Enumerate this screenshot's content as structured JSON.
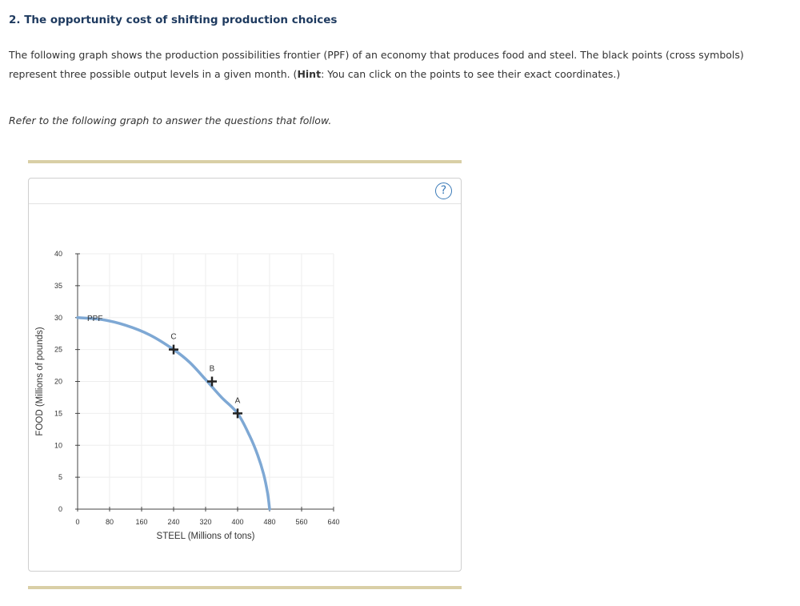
{
  "question": {
    "title": "2. The opportunity cost of shifting production choices",
    "text_part1": "The following graph shows the production possibilities frontier (PPF) of an economy that produces food and steel. The black points (cross symbols) represent three possible output levels in a given month. (",
    "hint_label": "Hint",
    "text_part2": ": You can click on the points to see their exact coordinates.)",
    "refer": "Refer to the following graph to answer the questions that follow."
  },
  "panel": {
    "help_symbol": "?",
    "help_icon": "question-circle-icon"
  },
  "colors": {
    "curve": "#7ea8d4",
    "grid": "#eeeeee",
    "axis": "#444444",
    "point": "#222222",
    "rule": "#d9cfa6"
  },
  "chart_data": {
    "type": "line",
    "xlabel": "STEEL (Millions of tons)",
    "ylabel": "FOOD (Millions of pounds)",
    "xlim": [
      0,
      640
    ],
    "ylim": [
      0,
      40
    ],
    "x_ticks": [
      0,
      80,
      160,
      240,
      320,
      400,
      480,
      560,
      640
    ],
    "y_ticks": [
      0,
      5,
      10,
      15,
      20,
      25,
      30,
      35,
      40
    ],
    "grid": true,
    "series": [
      {
        "name": "PPF",
        "x": [
          0,
          60,
          120,
          180,
          240,
          280,
          320,
          360,
          400,
          430,
          450,
          465,
          475,
          480
        ],
        "y": [
          30,
          29.7,
          28.8,
          27.3,
          25,
          23,
          20.3,
          17.5,
          15,
          11.5,
          8.5,
          5.5,
          2.5,
          0
        ]
      }
    ],
    "points": [
      {
        "label": "C",
        "x": 240,
        "y": 25
      },
      {
        "label": "B",
        "x": 336,
        "y": 20
      },
      {
        "label": "A",
        "x": 400,
        "y": 15
      }
    ]
  }
}
